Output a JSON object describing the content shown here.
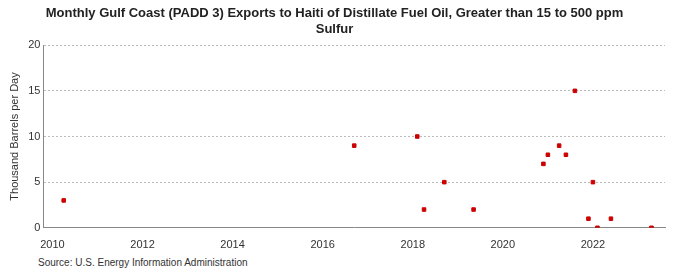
{
  "chart_data": {
    "type": "scatter",
    "title": "Monthly Gulf Coast (PADD 3) Exports to Haiti of Distillate Fuel Oil, Greater than 15 to 500 ppm Sulfur",
    "y_label": "Thousand Barrels per Day",
    "source": "Source: U.S. Energy Information Administration",
    "x": [
      2010.25,
      2016.7,
      2018.1,
      2018.25,
      2018.7,
      2019.35,
      2020.9,
      2021.0,
      2021.25,
      2021.4,
      2021.6,
      2021.9,
      2022.0,
      2022.1,
      2022.4,
      2023.3
    ],
    "values": [
      3,
      9,
      10,
      2,
      5,
      2,
      7,
      8,
      9,
      8,
      15,
      1,
      5,
      0,
      1,
      0
    ],
    "color": "#cc0000",
    "marker": "square",
    "xlim": [
      2009.8,
      2023.6
    ],
    "xticks": [
      2010,
      2012,
      2014,
      2016,
      2018,
      2020,
      2022
    ],
    "ylim": [
      0,
      20
    ],
    "yticks": [
      0,
      5,
      10,
      15,
      20
    ],
    "grid": true
  }
}
